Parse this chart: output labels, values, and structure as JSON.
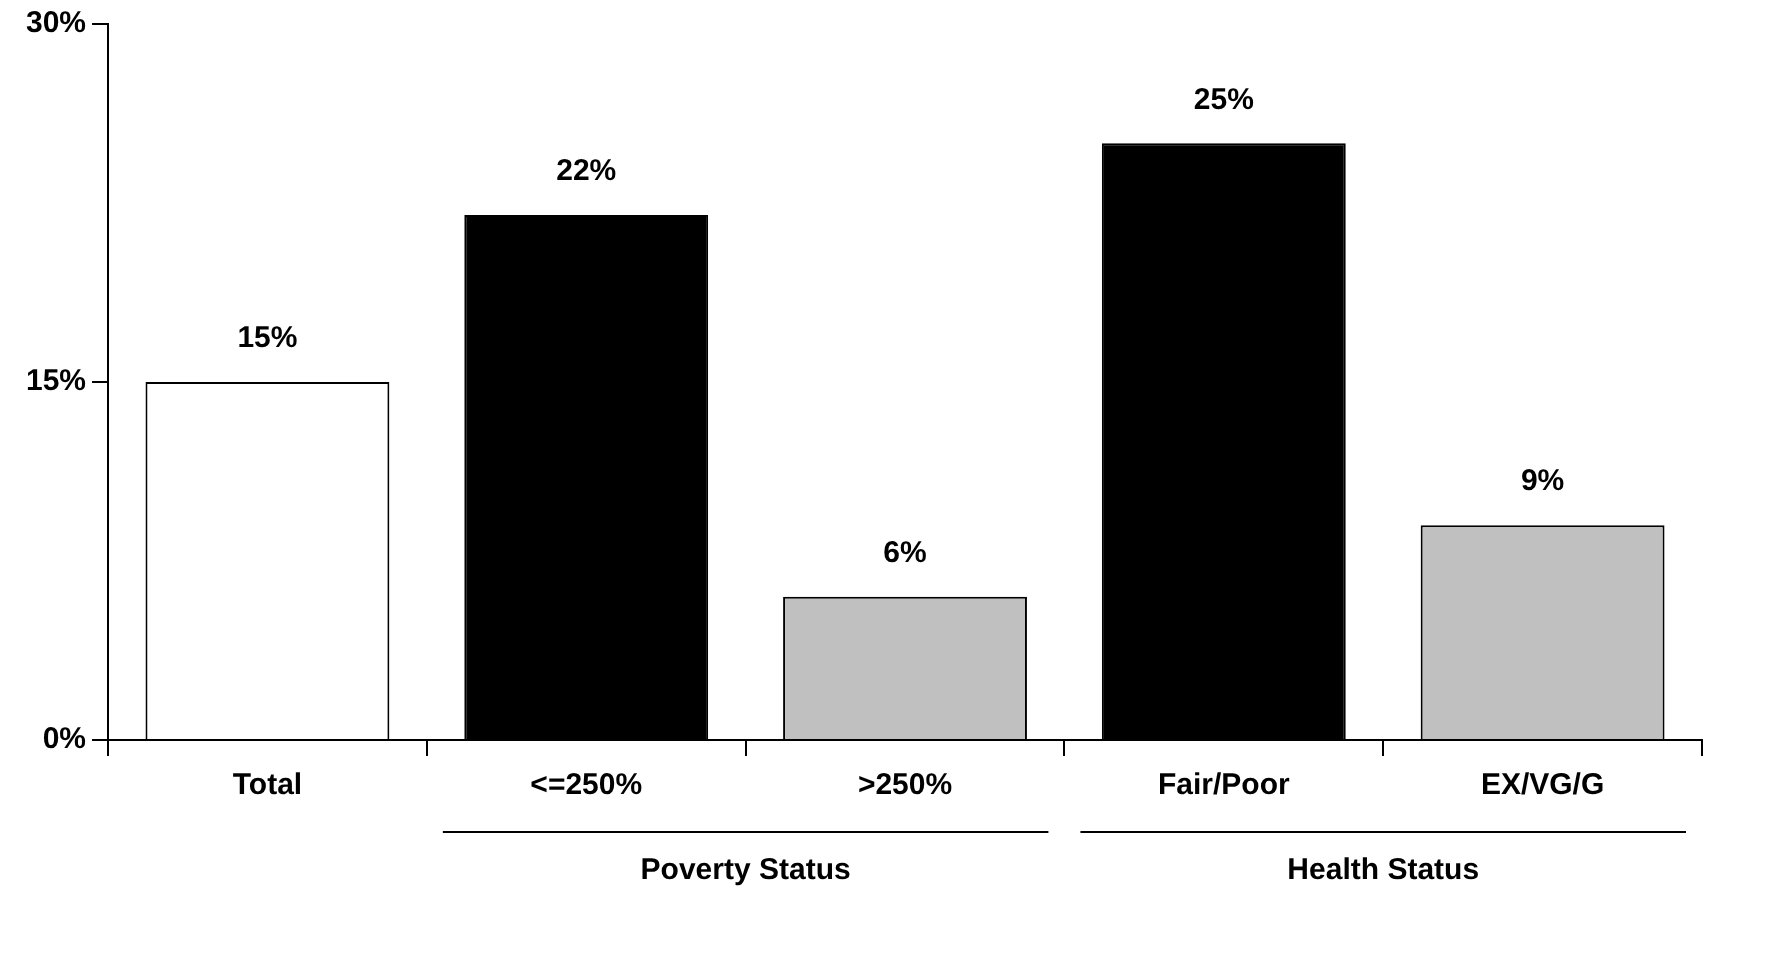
{
  "chart_data": {
    "type": "bar",
    "categories": [
      "Total",
      "<=250%",
      ">250%",
      "Fair/Poor",
      "EX/VG/G"
    ],
    "values": [
      15,
      22,
      6,
      25,
      9
    ],
    "colors": [
      "#ffffff",
      "#000000",
      "#c0c0c0",
      "#000000",
      "#c0c0c0"
    ],
    "value_labels": [
      "15%",
      "22%",
      "6%",
      "25%",
      "9%"
    ],
    "ylim": [
      0,
      30
    ],
    "yticks": [
      {
        "value": 0,
        "label": "0%"
      },
      {
        "value": 15,
        "label": "15%"
      },
      {
        "value": 30,
        "label": "30%"
      }
    ],
    "annotations": [
      "Poverty Status",
      "Health Status"
    ],
    "grid": false,
    "legend": false
  }
}
